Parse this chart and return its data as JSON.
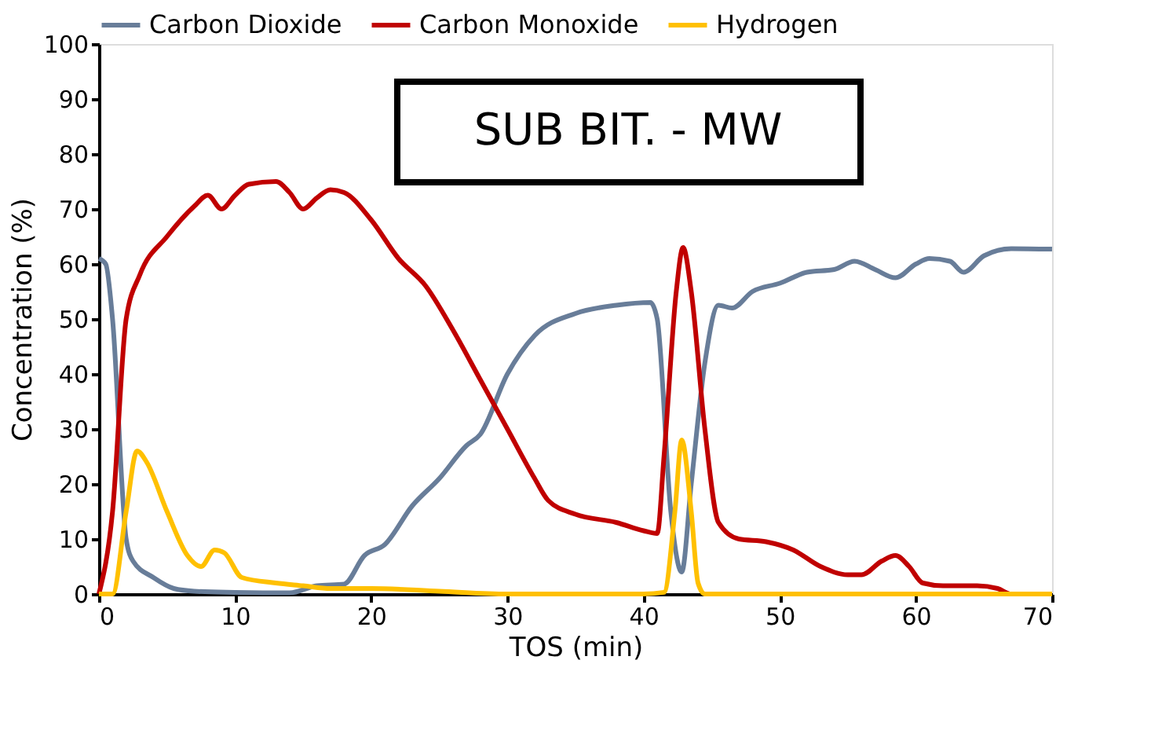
{
  "chart_data": {
    "type": "line",
    "xlabel": "TOS (min)",
    "ylabel": "Concentration (%)",
    "xlim": [
      0,
      70
    ],
    "ylim": [
      0,
      100
    ],
    "xticks": [
      0,
      10,
      20,
      30,
      40,
      50,
      60,
      70
    ],
    "yticks": [
      0,
      10,
      20,
      30,
      40,
      50,
      60,
      70,
      80,
      90,
      100
    ],
    "grid": false,
    "legend": "top",
    "marker": "none",
    "line_style": "solid",
    "annotations": [
      "SUB BIT. - MW"
    ],
    "series": [
      {
        "name": "Carbon Dioxide",
        "color": "#687d99",
        "x": [
          0,
          0.5,
          1,
          2,
          2.5,
          4,
          5.5,
          7,
          10,
          14,
          16,
          18,
          19.5,
          21,
          23,
          25,
          27,
          28,
          30,
          32,
          35,
          38,
          40.5,
          41,
          42,
          42.8,
          43.5,
          44.5,
          45.5,
          46.5,
          48,
          50,
          52,
          54,
          55.5,
          57,
          58.5,
          60,
          61,
          62.5,
          63.5,
          65,
          67,
          70
        ],
        "values": [
          61,
          60,
          50,
          10,
          6,
          3,
          1,
          0.5,
          0.3,
          0.2,
          1.5,
          1.8,
          7,
          9,
          16,
          21,
          27,
          29,
          40,
          47,
          51,
          52.5,
          53,
          50,
          15,
          4,
          20,
          42,
          52.5,
          52,
          55,
          56.5,
          58.5,
          59,
          60.5,
          59,
          57.5,
          60,
          61,
          60.5,
          58.5,
          61.5,
          62.8,
          62.7
        ]
      },
      {
        "name": "Carbon Monoxide",
        "color": "#c00000",
        "x": [
          0,
          1,
          2,
          3,
          5,
          7,
          8,
          9,
          10,
          11,
          13,
          14,
          15,
          16,
          17,
          18,
          20,
          22,
          24,
          26,
          28,
          30,
          32,
          33,
          35,
          38,
          40,
          41,
          41.5,
          42.4,
          42.9,
          43.5,
          44.5,
          45.5,
          47,
          49,
          51,
          53,
          55,
          56,
          57.5,
          58.5,
          59.5,
          60.5,
          62,
          64.5,
          66,
          67,
          70
        ],
        "values": [
          0,
          15,
          50,
          58,
          65,
          70.5,
          72.5,
          70,
          72.5,
          74.5,
          75,
          73,
          70,
          72,
          73.5,
          73,
          68,
          61,
          56,
          48,
          39,
          30,
          21,
          17,
          14.5,
          13,
          11.5,
          11,
          25,
          55,
          63,
          55,
          30,
          13,
          10,
          9.5,
          8,
          5,
          3.5,
          3.5,
          6,
          7,
          5,
          2,
          1.5,
          1.5,
          1,
          0,
          0
        ]
      },
      {
        "name": "Hydrogen",
        "color": "#ffc000",
        "x": [
          0,
          1,
          2,
          2.8,
          3.5,
          5,
          6.5,
          7.5,
          8.5,
          9.2,
          10.5,
          13,
          15,
          17,
          20,
          25,
          30,
          40,
          41.5,
          42.3,
          42.8,
          43.5,
          44,
          44.5,
          50,
          70
        ],
        "values": [
          0,
          0,
          15,
          26,
          24,
          15,
          7,
          5,
          8,
          7.5,
          3,
          2,
          1.5,
          1,
          1,
          0.5,
          0,
          0,
          0.3,
          15,
          28,
          15,
          2,
          0,
          0,
          0
        ]
      }
    ]
  }
}
